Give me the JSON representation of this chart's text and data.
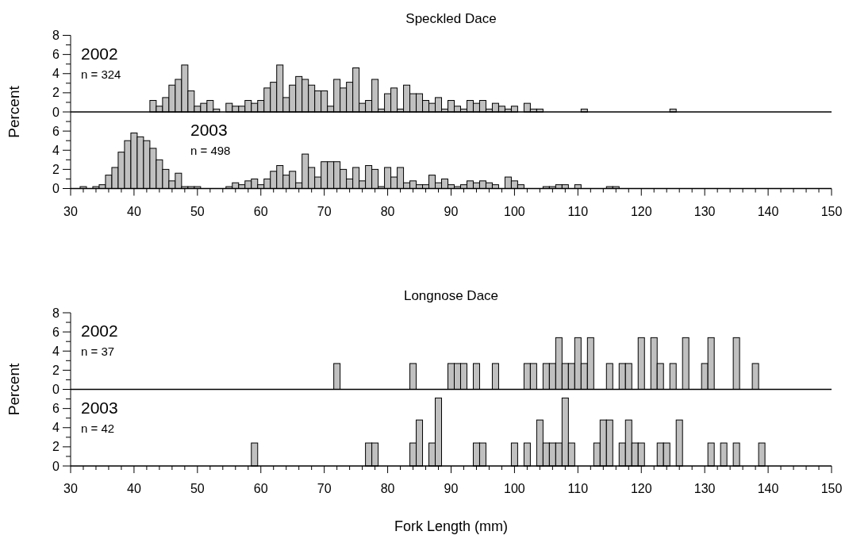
{
  "chart_data": [
    {
      "type": "histogram",
      "title": "Speckled Dace",
      "ylabel": "Percent",
      "annotations": [
        "2002",
        "n = 324"
      ],
      "color": "#c0c0c0",
      "xlim": [
        30,
        150
      ],
      "ylim": [
        0,
        8
      ],
      "yticks": [
        0,
        {
          "value": 1,
          "label": null
        },
        2,
        {
          "value": 3,
          "label": null
        },
        4,
        {
          "value": 5,
          "label": null
        },
        6,
        {
          "value": 7,
          "label": null
        },
        8
      ],
      "tick_labels": "y",
      "bins": [
        42.5,
        43.5,
        44.5,
        45.5,
        46.5,
        47.5,
        48.5,
        49.5,
        50.5,
        51.5,
        52.5,
        53.5,
        54.5,
        55.5,
        56.5,
        57.5,
        58.5,
        59.5,
        60.5,
        61.5,
        62.5,
        63.5,
        64.5,
        65.5,
        66.5,
        67.5,
        68.5,
        69.5,
        70.5,
        71.5,
        72.5,
        73.5,
        74.5,
        75.5,
        76.5,
        77.5,
        78.5,
        79.5,
        80.5,
        81.5,
        82.5,
        83.5,
        84.5,
        85.5,
        86.5,
        87.5,
        88.5,
        89.5,
        90.5,
        91.5,
        92.5,
        93.5,
        94.5,
        95.5,
        96.5,
        97.5,
        98.5,
        99.5,
        100.5,
        101.5,
        102.5,
        103.5,
        104.5,
        105.5,
        106.5,
        107.5,
        108.5,
        109.5,
        110.5,
        111.5,
        112.5,
        113.5,
        114.5,
        115.5,
        116.5,
        117.5,
        118.5,
        119.5,
        120.5,
        121.5,
        122.5,
        123.5,
        124.5,
        125.5
      ],
      "values": [
        1.2,
        0.6,
        1.5,
        2.8,
        3.4,
        4.9,
        2.2,
        0.6,
        0.9,
        1.2,
        0.3,
        0,
        0.9,
        0.6,
        0.6,
        1.2,
        0.9,
        1.2,
        2.5,
        3.1,
        4.9,
        1.5,
        2.8,
        3.7,
        3.4,
        2.8,
        2.2,
        2.2,
        0.6,
        3.4,
        2.5,
        3.1,
        4.6,
        0.9,
        1.2,
        3.4,
        0.3,
        1.9,
        2.5,
        0.3,
        2.8,
        1.9,
        1.9,
        1.2,
        0.9,
        1.5,
        0.3,
        1.2,
        0.6,
        0.3,
        1.2,
        0.9,
        1.2,
        0.3,
        0.9,
        0.6,
        0.3,
        0.6,
        0,
        0.9,
        0.3,
        0.3,
        0,
        0,
        0,
        0,
        0,
        0,
        0.3,
        0,
        0,
        0,
        0,
        0,
        0,
        0,
        0,
        0,
        0,
        0,
        0,
        0,
        0.3
      ]
    },
    {
      "type": "histogram",
      "annotations": [
        "2003",
        "n = 498"
      ],
      "color": "#c0c0c0",
      "xlim": [
        30,
        150
      ],
      "ylim": [
        0,
        8
      ],
      "yticks": [
        0,
        {
          "value": 1,
          "label": null
        },
        2,
        {
          "value": 3,
          "label": null
        },
        4,
        {
          "value": 5,
          "label": null
        },
        6,
        {
          "value": 7,
          "label": null
        }
      ],
      "xticks": [
        30,
        {
          "value": 32,
          "label": null
        },
        {
          "value": 34,
          "label": null
        },
        {
          "value": 36,
          "label": null
        },
        {
          "value": 38,
          "label": null
        },
        40,
        {
          "value": 42,
          "label": null
        },
        {
          "value": 44,
          "label": null
        },
        {
          "value": 46,
          "label": null
        },
        {
          "value": 48,
          "label": null
        },
        50,
        {
          "value": 52,
          "label": null
        },
        {
          "value": 54,
          "label": null
        },
        {
          "value": 56,
          "label": null
        },
        {
          "value": 58,
          "label": null
        },
        60,
        {
          "value": 62,
          "label": null
        },
        {
          "value": 64,
          "label": null
        },
        {
          "value": 66,
          "label": null
        },
        {
          "value": 68,
          "label": null
        },
        70,
        {
          "value": 72,
          "label": null
        },
        {
          "value": 74,
          "label": null
        },
        {
          "value": 76,
          "label": null
        },
        {
          "value": 78,
          "label": null
        },
        80,
        {
          "value": 82,
          "label": null
        },
        {
          "value": 84,
          "label": null
        },
        {
          "value": 86,
          "label": null
        },
        {
          "value": 88,
          "label": null
        },
        90,
        {
          "value": 92,
          "label": null
        },
        {
          "value": 94,
          "label": null
        },
        {
          "value": 96,
          "label": null
        },
        {
          "value": 98,
          "label": null
        },
        100,
        {
          "value": 102,
          "label": null
        },
        {
          "value": 104,
          "label": null
        },
        {
          "value": 106,
          "label": null
        },
        {
          "value": 108,
          "label": null
        },
        110,
        {
          "value": 112,
          "label": null
        },
        {
          "value": 114,
          "label": null
        },
        {
          "value": 116,
          "label": null
        },
        {
          "value": 118,
          "label": null
        },
        120,
        {
          "value": 122,
          "label": null
        },
        {
          "value": 124,
          "label": null
        },
        {
          "value": 126,
          "label": null
        },
        {
          "value": 128,
          "label": null
        },
        130,
        {
          "value": 132,
          "label": null
        },
        {
          "value": 134,
          "label": null
        },
        {
          "value": 136,
          "label": null
        },
        {
          "value": 138,
          "label": null
        },
        140,
        {
          "value": 142,
          "label": null
        },
        {
          "value": 144,
          "label": null
        },
        {
          "value": 146,
          "label": null
        },
        {
          "value": 148,
          "label": null
        },
        150
      ],
      "bins": [
        31.5,
        32.5,
        33.5,
        34.5,
        35.5,
        36.5,
        37.5,
        38.5,
        39.5,
        40.5,
        41.5,
        42.5,
        43.5,
        44.5,
        45.5,
        46.5,
        47.5,
        48.5,
        49.5,
        50.5,
        51.5,
        52.5,
        53.5,
        54.5,
        55.5,
        56.5,
        57.5,
        58.5,
        59.5,
        60.5,
        61.5,
        62.5,
        63.5,
        64.5,
        65.5,
        66.5,
        67.5,
        68.5,
        69.5,
        70.5,
        71.5,
        72.5,
        73.5,
        74.5,
        75.5,
        76.5,
        77.5,
        78.5,
        79.5,
        80.5,
        81.5,
        82.5,
        83.5,
        84.5,
        85.5,
        86.5,
        87.5,
        88.5,
        89.5,
        90.5,
        91.5,
        92.5,
        93.5,
        94.5,
        95.5,
        96.5,
        97.5,
        98.5,
        99.5,
        100.5,
        101.5,
        102.5,
        103.5,
        104.5,
        105.5,
        106.5,
        107.5,
        108.5,
        109.5,
        110.5,
        111.5,
        112.5,
        113.5,
        114.5,
        115.5,
        116.5
      ],
      "values": [
        0.2,
        0,
        0.2,
        0.4,
        1.4,
        2.2,
        3.8,
        5.0,
        5.8,
        5.4,
        5.0,
        4.2,
        3.0,
        2.0,
        0.8,
        1.6,
        0.2,
        0.2,
        0.2,
        0,
        0,
        0,
        0,
        0.2,
        0.6,
        0.4,
        0.8,
        1.0,
        0.4,
        1.0,
        1.8,
        2.4,
        1.4,
        1.8,
        0.6,
        3.6,
        2.2,
        1.2,
        2.8,
        2.8,
        2.8,
        2.0,
        1.0,
        2.2,
        0.8,
        2.4,
        2.0,
        0.2,
        2.2,
        1.2,
        2.2,
        0.6,
        0.8,
        0.4,
        0.4,
        1.4,
        0.6,
        1.0,
        0.4,
        0.2,
        0.4,
        0.8,
        0.6,
        0.8,
        0.6,
        0.4,
        0,
        1.2,
        0.8,
        0.4,
        0,
        0,
        0,
        0.2,
        0.2,
        0.4,
        0.4,
        0,
        0.4,
        0,
        0,
        0,
        0,
        0.2,
        0.2
      ]
    },
    {
      "type": "histogram",
      "title": "Longnose Dace",
      "ylabel": "Percent",
      "annotations": [
        "2002",
        "n = 37"
      ],
      "color": "#c0c0c0",
      "xlim": [
        30,
        150
      ],
      "ylim": [
        0,
        8
      ],
      "yticks": [
        0,
        {
          "value": 1,
          "label": null
        },
        2,
        {
          "value": 3,
          "label": null
        },
        4,
        {
          "value": 5,
          "label": null
        },
        6,
        {
          "value": 7,
          "label": null
        },
        8
      ],
      "tick_labels": "y",
      "bins": [
        71.5,
        72.5,
        73.5,
        74.5,
        75.5,
        76.5,
        77.5,
        78.5,
        79.5,
        80.5,
        81.5,
        82.5,
        83.5,
        84.5,
        85.5,
        86.5,
        87.5,
        88.5,
        89.5,
        90.5,
        91.5,
        92.5,
        93.5,
        94.5,
        95.5,
        96.5,
        97.5,
        98.5,
        99.5,
        100.5,
        101.5,
        102.5,
        103.5,
        104.5,
        105.5,
        106.5,
        107.5,
        108.5,
        109.5,
        110.5,
        111.5,
        112.5,
        113.5,
        114.5,
        115.5,
        116.5,
        117.5,
        118.5,
        119.5,
        120.5,
        121.5,
        122.5,
        123.5,
        124.5,
        125.5,
        126.5,
        127.5,
        128.5,
        129.5,
        130.5,
        131.5,
        132.5,
        133.5,
        134.5,
        135.5,
        136.5,
        137.5,
        138.5
      ],
      "values": [
        2.7,
        0,
        0,
        0,
        0,
        0,
        0,
        0,
        0,
        0,
        0,
        0,
        2.7,
        0,
        0,
        0,
        0,
        0,
        2.7,
        2.7,
        2.7,
        0,
        2.7,
        0,
        0,
        2.7,
        0,
        0,
        0,
        0,
        2.7,
        2.7,
        0,
        2.7,
        2.7,
        5.4,
        2.7,
        2.7,
        5.4,
        2.7,
        5.4,
        0,
        0,
        2.7,
        0,
        2.7,
        2.7,
        0,
        5.4,
        0,
        5.4,
        2.7,
        0,
        2.7,
        0,
        5.4,
        0,
        0,
        2.7,
        5.4,
        0,
        0,
        0,
        5.4,
        0,
        0,
        2.7
      ]
    },
    {
      "type": "histogram",
      "xlabel": "Fork Length (mm)",
      "annotations": [
        "2003",
        "n = 42"
      ],
      "color": "#c0c0c0",
      "xlim": [
        30,
        150
      ],
      "ylim": [
        0,
        8
      ],
      "yticks": [
        0,
        {
          "value": 1,
          "label": null
        },
        2,
        {
          "value": 3,
          "label": null
        },
        4,
        {
          "value": 5,
          "label": null
        },
        6,
        {
          "value": 7,
          "label": null
        }
      ],
      "xticks": [
        30,
        {
          "value": 32,
          "label": null
        },
        {
          "value": 34,
          "label": null
        },
        {
          "value": 36,
          "label": null
        },
        {
          "value": 38,
          "label": null
        },
        40,
        {
          "value": 42,
          "label": null
        },
        {
          "value": 44,
          "label": null
        },
        {
          "value": 46,
          "label": null
        },
        {
          "value": 48,
          "label": null
        },
        50,
        {
          "value": 52,
          "label": null
        },
        {
          "value": 54,
          "label": null
        },
        {
          "value": 56,
          "label": null
        },
        {
          "value": 58,
          "label": null
        },
        60,
        {
          "value": 62,
          "label": null
        },
        {
          "value": 64,
          "label": null
        },
        {
          "value": 66,
          "label": null
        },
        {
          "value": 68,
          "label": null
        },
        70,
        {
          "value": 72,
          "label": null
        },
        {
          "value": 74,
          "label": null
        },
        {
          "value": 76,
          "label": null
        },
        {
          "value": 78,
          "label": null
        },
        80,
        {
          "value": 82,
          "label": null
        },
        {
          "value": 84,
          "label": null
        },
        {
          "value": 86,
          "label": null
        },
        {
          "value": 88,
          "label": null
        },
        90,
        {
          "value": 92,
          "label": null
        },
        {
          "value": 94,
          "label": null
        },
        {
          "value": 96,
          "label": null
        },
        {
          "value": 98,
          "label": null
        },
        100,
        {
          "value": 102,
          "label": null
        },
        {
          "value": 104,
          "label": null
        },
        {
          "value": 106,
          "label": null
        },
        {
          "value": 108,
          "label": null
        },
        110,
        {
          "value": 112,
          "label": null
        },
        {
          "value": 114,
          "label": null
        },
        {
          "value": 116,
          "label": null
        },
        {
          "value": 118,
          "label": null
        },
        120,
        {
          "value": 122,
          "label": null
        },
        {
          "value": 124,
          "label": null
        },
        {
          "value": 126,
          "label": null
        },
        {
          "value": 128,
          "label": null
        },
        130,
        {
          "value": 132,
          "label": null
        },
        {
          "value": 134,
          "label": null
        },
        {
          "value": 136,
          "label": null
        },
        {
          "value": 138,
          "label": null
        },
        140,
        {
          "value": 142,
          "label": null
        },
        {
          "value": 144,
          "label": null
        },
        {
          "value": 146,
          "label": null
        },
        {
          "value": 148,
          "label": null
        },
        150
      ],
      "bins": [
        58.5,
        59.5,
        60.5,
        61.5,
        62.5,
        63.5,
        64.5,
        65.5,
        66.5,
        67.5,
        68.5,
        69.5,
        70.5,
        71.5,
        72.5,
        73.5,
        74.5,
        75.5,
        76.5,
        77.5,
        78.5,
        79.5,
        80.5,
        81.5,
        82.5,
        83.5,
        84.5,
        85.5,
        86.5,
        87.5,
        88.5,
        89.5,
        90.5,
        91.5,
        92.5,
        93.5,
        94.5,
        95.5,
        96.5,
        97.5,
        98.5,
        99.5,
        100.5,
        101.5,
        102.5,
        103.5,
        104.5,
        105.5,
        106.5,
        107.5,
        108.5,
        109.5,
        110.5,
        111.5,
        112.5,
        113.5,
        114.5,
        115.5,
        116.5,
        117.5,
        118.5,
        119.5,
        120.5,
        121.5,
        122.5,
        123.5,
        124.5,
        125.5,
        126.5,
        127.5,
        128.5,
        129.5,
        130.5,
        131.5,
        132.5,
        133.5,
        134.5,
        135.5,
        136.5,
        137.5,
        138.5,
        139.5
      ],
      "values": [
        2.4,
        0,
        0,
        0,
        0,
        0,
        0,
        0,
        0,
        0,
        0,
        0,
        0,
        0,
        0,
        0,
        0,
        0,
        2.4,
        2.4,
        0,
        0,
        0,
        0,
        0,
        2.4,
        4.8,
        0,
        2.4,
        7.1,
        0,
        0,
        0,
        0,
        0,
        2.4,
        2.4,
        0,
        0,
        0,
        0,
        2.4,
        0,
        2.4,
        0,
        4.8,
        2.4,
        2.4,
        2.4,
        7.1,
        2.4,
        0,
        0,
        0,
        2.4,
        4.8,
        4.8,
        0,
        2.4,
        4.8,
        2.4,
        2.4,
        0,
        0,
        2.4,
        2.4,
        0,
        4.8,
        0,
        0,
        0,
        0,
        2.4,
        0,
        2.4,
        0,
        2.4,
        0,
        0,
        0,
        2.4
      ]
    }
  ]
}
